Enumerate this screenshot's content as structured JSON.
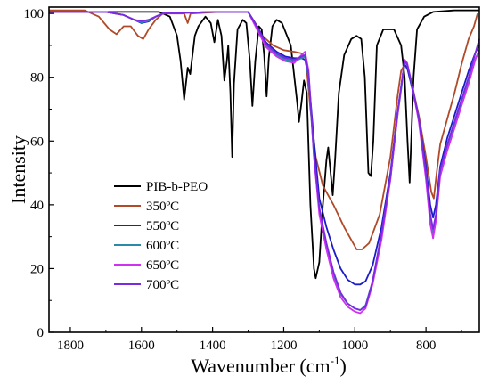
{
  "chart_data": {
    "type": "line",
    "xlabel": "Wavenumber (cm",
    "xlabel_sup": "-1",
    "xlabel_close": ")",
    "ylabel": "Intensity",
    "xlim": [
      1860,
      650
    ],
    "ylim": [
      0,
      102
    ],
    "x_reversed": true,
    "x_ticks": [
      1800,
      1600,
      1400,
      1200,
      1000,
      800
    ],
    "x_tick_labels": [
      "1800",
      "1600",
      "1400",
      "1200",
      "1000",
      "800"
    ],
    "y_ticks": [
      0,
      20,
      40,
      60,
      80,
      100
    ],
    "y_tick_labels": [
      "0",
      "20",
      "40",
      "60",
      "80",
      "100"
    ],
    "grid": false,
    "legend_position": "center-left",
    "series": [
      {
        "name": "PIB-b-PEO",
        "color": "#000000",
        "points": [
          [
            1860,
            100.5
          ],
          [
            1700,
            100.5
          ],
          [
            1550,
            100.5
          ],
          [
            1520,
            99
          ],
          [
            1500,
            93
          ],
          [
            1490,
            85
          ],
          [
            1480,
            73
          ],
          [
            1470,
            83
          ],
          [
            1463,
            81
          ],
          [
            1450,
            93
          ],
          [
            1440,
            96
          ],
          [
            1420,
            99
          ],
          [
            1405,
            97
          ],
          [
            1395,
            91
          ],
          [
            1385,
            98
          ],
          [
            1375,
            93
          ],
          [
            1367,
            79
          ],
          [
            1360,
            85
          ],
          [
            1356,
            90
          ],
          [
            1350,
            75
          ],
          [
            1345,
            55
          ],
          [
            1340,
            78
          ],
          [
            1330,
            95
          ],
          [
            1315,
            98
          ],
          [
            1305,
            97
          ],
          [
            1295,
            85
          ],
          [
            1288,
            71
          ],
          [
            1280,
            85
          ],
          [
            1270,
            96
          ],
          [
            1262,
            95
          ],
          [
            1255,
            87
          ],
          [
            1248,
            74
          ],
          [
            1242,
            86
          ],
          [
            1232,
            96
          ],
          [
            1220,
            98
          ],
          [
            1205,
            97
          ],
          [
            1180,
            90
          ],
          [
            1162,
            72
          ],
          [
            1157,
            66
          ],
          [
            1150,
            72
          ],
          [
            1143,
            79
          ],
          [
            1135,
            75
          ],
          [
            1125,
            40
          ],
          [
            1115,
            20
          ],
          [
            1110,
            17
          ],
          [
            1100,
            22
          ],
          [
            1090,
            40
          ],
          [
            1080,
            54
          ],
          [
            1075,
            58
          ],
          [
            1068,
            50
          ],
          [
            1062,
            43
          ],
          [
            1055,
            55
          ],
          [
            1045,
            75
          ],
          [
            1030,
            87
          ],
          [
            1010,
            92
          ],
          [
            995,
            93
          ],
          [
            982,
            92
          ],
          [
            972,
            80
          ],
          [
            962,
            50
          ],
          [
            955,
            49
          ],
          [
            948,
            60
          ],
          [
            938,
            90
          ],
          [
            920,
            95
          ],
          [
            890,
            95
          ],
          [
            870,
            90
          ],
          [
            860,
            80
          ],
          [
            852,
            60
          ],
          [
            846,
            47
          ],
          [
            840,
            65
          ],
          [
            835,
            80
          ],
          [
            825,
            95
          ],
          [
            805,
            99
          ],
          [
            780,
            100.5
          ],
          [
            720,
            101
          ],
          [
            650,
            101
          ]
        ]
      },
      {
        "name": "350ºC",
        "color": "#b04a28",
        "points": [
          [
            1860,
            101
          ],
          [
            1760,
            101
          ],
          [
            1720,
            99
          ],
          [
            1690,
            95
          ],
          [
            1670,
            93.5
          ],
          [
            1650,
            96
          ],
          [
            1630,
            96
          ],
          [
            1610,
            93
          ],
          [
            1595,
            92
          ],
          [
            1580,
            95
          ],
          [
            1560,
            98
          ],
          [
            1540,
            100
          ],
          [
            1480,
            100
          ],
          [
            1470,
            97
          ],
          [
            1462,
            100
          ],
          [
            1380,
            100.5
          ],
          [
            1300,
            100.5
          ],
          [
            1280,
            97
          ],
          [
            1260,
            93
          ],
          [
            1230,
            90
          ],
          [
            1200,
            88.5
          ],
          [
            1170,
            88
          ],
          [
            1150,
            87.5
          ],
          [
            1138,
            86
          ],
          [
            1125,
            70
          ],
          [
            1110,
            55
          ],
          [
            1090,
            46
          ],
          [
            1060,
            40
          ],
          [
            1030,
            33
          ],
          [
            1005,
            28
          ],
          [
            995,
            26
          ],
          [
            980,
            26
          ],
          [
            960,
            28
          ],
          [
            930,
            37
          ],
          [
            900,
            55
          ],
          [
            880,
            74
          ],
          [
            870,
            82
          ],
          [
            860,
            84
          ],
          [
            850,
            82
          ],
          [
            840,
            78
          ],
          [
            820,
            68
          ],
          [
            800,
            55
          ],
          [
            785,
            44
          ],
          [
            778,
            42
          ],
          [
            770,
            50
          ],
          [
            760,
            59
          ],
          [
            740,
            67
          ],
          [
            720,
            75
          ],
          [
            700,
            84
          ],
          [
            680,
            92
          ],
          [
            665,
            96
          ],
          [
            655,
            100
          ]
        ]
      },
      {
        "name": "550ºC",
        "color": "#1c1cc8",
        "points": [
          [
            1860,
            100.5
          ],
          [
            1700,
            100.5
          ],
          [
            1650,
            99.5
          ],
          [
            1620,
            98
          ],
          [
            1600,
            97
          ],
          [
            1580,
            97.5
          ],
          [
            1560,
            99
          ],
          [
            1540,
            100
          ],
          [
            1400,
            100.5
          ],
          [
            1300,
            100.5
          ],
          [
            1275,
            96
          ],
          [
            1250,
            91
          ],
          [
            1220,
            88
          ],
          [
            1195,
            86.5
          ],
          [
            1170,
            86
          ],
          [
            1150,
            86
          ],
          [
            1140,
            85.5
          ],
          [
            1130,
            80
          ],
          [
            1115,
            60
          ],
          [
            1100,
            42
          ],
          [
            1080,
            33
          ],
          [
            1060,
            26
          ],
          [
            1040,
            20
          ],
          [
            1020,
            16.5
          ],
          [
            1000,
            15
          ],
          [
            985,
            15
          ],
          [
            970,
            16
          ],
          [
            950,
            21
          ],
          [
            925,
            33
          ],
          [
            900,
            50
          ],
          [
            880,
            69
          ],
          [
            865,
            81
          ],
          [
            860,
            84
          ],
          [
            853,
            83
          ],
          [
            840,
            77
          ],
          [
            820,
            67
          ],
          [
            800,
            52
          ],
          [
            788,
            40
          ],
          [
            780,
            36
          ],
          [
            772,
            40
          ],
          [
            760,
            52
          ],
          [
            740,
            61
          ],
          [
            720,
            68
          ],
          [
            700,
            75
          ],
          [
            680,
            82
          ],
          [
            660,
            88
          ],
          [
            650,
            90
          ]
        ]
      },
      {
        "name": "600ºC",
        "color": "#2a8aa8",
        "points": [
          [
            1860,
            100.5
          ],
          [
            1700,
            100.5
          ],
          [
            1650,
            99.5
          ],
          [
            1620,
            98
          ],
          [
            1600,
            97.2
          ],
          [
            1580,
            97.7
          ],
          [
            1560,
            99
          ],
          [
            1540,
            100
          ],
          [
            1400,
            100.5
          ],
          [
            1300,
            100.5
          ],
          [
            1275,
            95.5
          ],
          [
            1250,
            90
          ],
          [
            1220,
            87
          ],
          [
            1195,
            85.5
          ],
          [
            1170,
            85
          ],
          [
            1150,
            86
          ],
          [
            1140,
            86.5
          ],
          [
            1130,
            80
          ],
          [
            1115,
            55
          ],
          [
            1100,
            38
          ],
          [
            1080,
            27
          ],
          [
            1060,
            18
          ],
          [
            1040,
            12
          ],
          [
            1020,
            9
          ],
          [
            1000,
            7.5
          ],
          [
            985,
            7
          ],
          [
            970,
            8.5
          ],
          [
            950,
            16
          ],
          [
            925,
            30
          ],
          [
            900,
            48
          ],
          [
            880,
            68
          ],
          [
            865,
            80
          ],
          [
            860,
            85
          ],
          [
            853,
            84
          ],
          [
            840,
            78
          ],
          [
            820,
            67
          ],
          [
            800,
            50
          ],
          [
            788,
            36
          ],
          [
            780,
            31
          ],
          [
            772,
            36
          ],
          [
            760,
            50
          ],
          [
            740,
            58
          ],
          [
            720,
            65
          ],
          [
            700,
            72
          ],
          [
            680,
            79
          ],
          [
            660,
            86
          ],
          [
            650,
            88.5
          ]
        ]
      },
      {
        "name": "650ºC",
        "color": "#d030f0",
        "points": [
          [
            1860,
            100.5
          ],
          [
            1700,
            100.5
          ],
          [
            1650,
            99.5
          ],
          [
            1620,
            98
          ],
          [
            1600,
            97.5
          ],
          [
            1580,
            98
          ],
          [
            1560,
            99
          ],
          [
            1540,
            100
          ],
          [
            1400,
            100.5
          ],
          [
            1300,
            100.5
          ],
          [
            1275,
            95
          ],
          [
            1250,
            89.5
          ],
          [
            1220,
            86.5
          ],
          [
            1195,
            85
          ],
          [
            1170,
            84.5
          ],
          [
            1150,
            87
          ],
          [
            1140,
            88
          ],
          [
            1130,
            82
          ],
          [
            1115,
            55
          ],
          [
            1100,
            37
          ],
          [
            1080,
            26
          ],
          [
            1060,
            17
          ],
          [
            1040,
            11
          ],
          [
            1020,
            8
          ],
          [
            1000,
            6.5
          ],
          [
            985,
            6
          ],
          [
            970,
            7.5
          ],
          [
            950,
            15
          ],
          [
            925,
            29
          ],
          [
            900,
            48
          ],
          [
            880,
            68
          ],
          [
            865,
            81
          ],
          [
            860,
            85.5
          ],
          [
            853,
            84.5
          ],
          [
            840,
            78
          ],
          [
            820,
            66
          ],
          [
            800,
            48
          ],
          [
            788,
            34
          ],
          [
            780,
            29.5
          ],
          [
            772,
            35
          ],
          [
            760,
            49
          ],
          [
            740,
            57
          ],
          [
            720,
            64
          ],
          [
            700,
            71
          ],
          [
            680,
            78
          ],
          [
            660,
            86
          ],
          [
            650,
            88
          ]
        ]
      },
      {
        "name": "700ºC",
        "color": "#7a2ae0",
        "points": [
          [
            1860,
            100.5
          ],
          [
            1700,
            100.5
          ],
          [
            1650,
            99.5
          ],
          [
            1620,
            98
          ],
          [
            1600,
            97.6
          ],
          [
            1580,
            98
          ],
          [
            1560,
            99
          ],
          [
            1540,
            100
          ],
          [
            1400,
            100.5
          ],
          [
            1300,
            100.5
          ],
          [
            1275,
            95.8
          ],
          [
            1250,
            90.5
          ],
          [
            1220,
            87.5
          ],
          [
            1195,
            86
          ],
          [
            1170,
            85.5
          ],
          [
            1150,
            86.5
          ],
          [
            1140,
            87
          ],
          [
            1130,
            81
          ],
          [
            1115,
            56
          ],
          [
            1100,
            39
          ],
          [
            1080,
            28
          ],
          [
            1060,
            19
          ],
          [
            1040,
            12.5
          ],
          [
            1020,
            9
          ],
          [
            1000,
            7.5
          ],
          [
            985,
            7
          ],
          [
            970,
            8
          ],
          [
            950,
            16
          ],
          [
            925,
            31
          ],
          [
            900,
            49
          ],
          [
            880,
            69
          ],
          [
            865,
            81
          ],
          [
            860,
            85
          ],
          [
            853,
            84
          ],
          [
            840,
            78
          ],
          [
            820,
            67
          ],
          [
            800,
            50
          ],
          [
            788,
            37
          ],
          [
            780,
            32.5
          ],
          [
            772,
            37
          ],
          [
            760,
            51
          ],
          [
            740,
            59
          ],
          [
            720,
            66
          ],
          [
            700,
            73
          ],
          [
            680,
            80
          ],
          [
            660,
            88
          ],
          [
            650,
            92
          ]
        ]
      }
    ]
  }
}
